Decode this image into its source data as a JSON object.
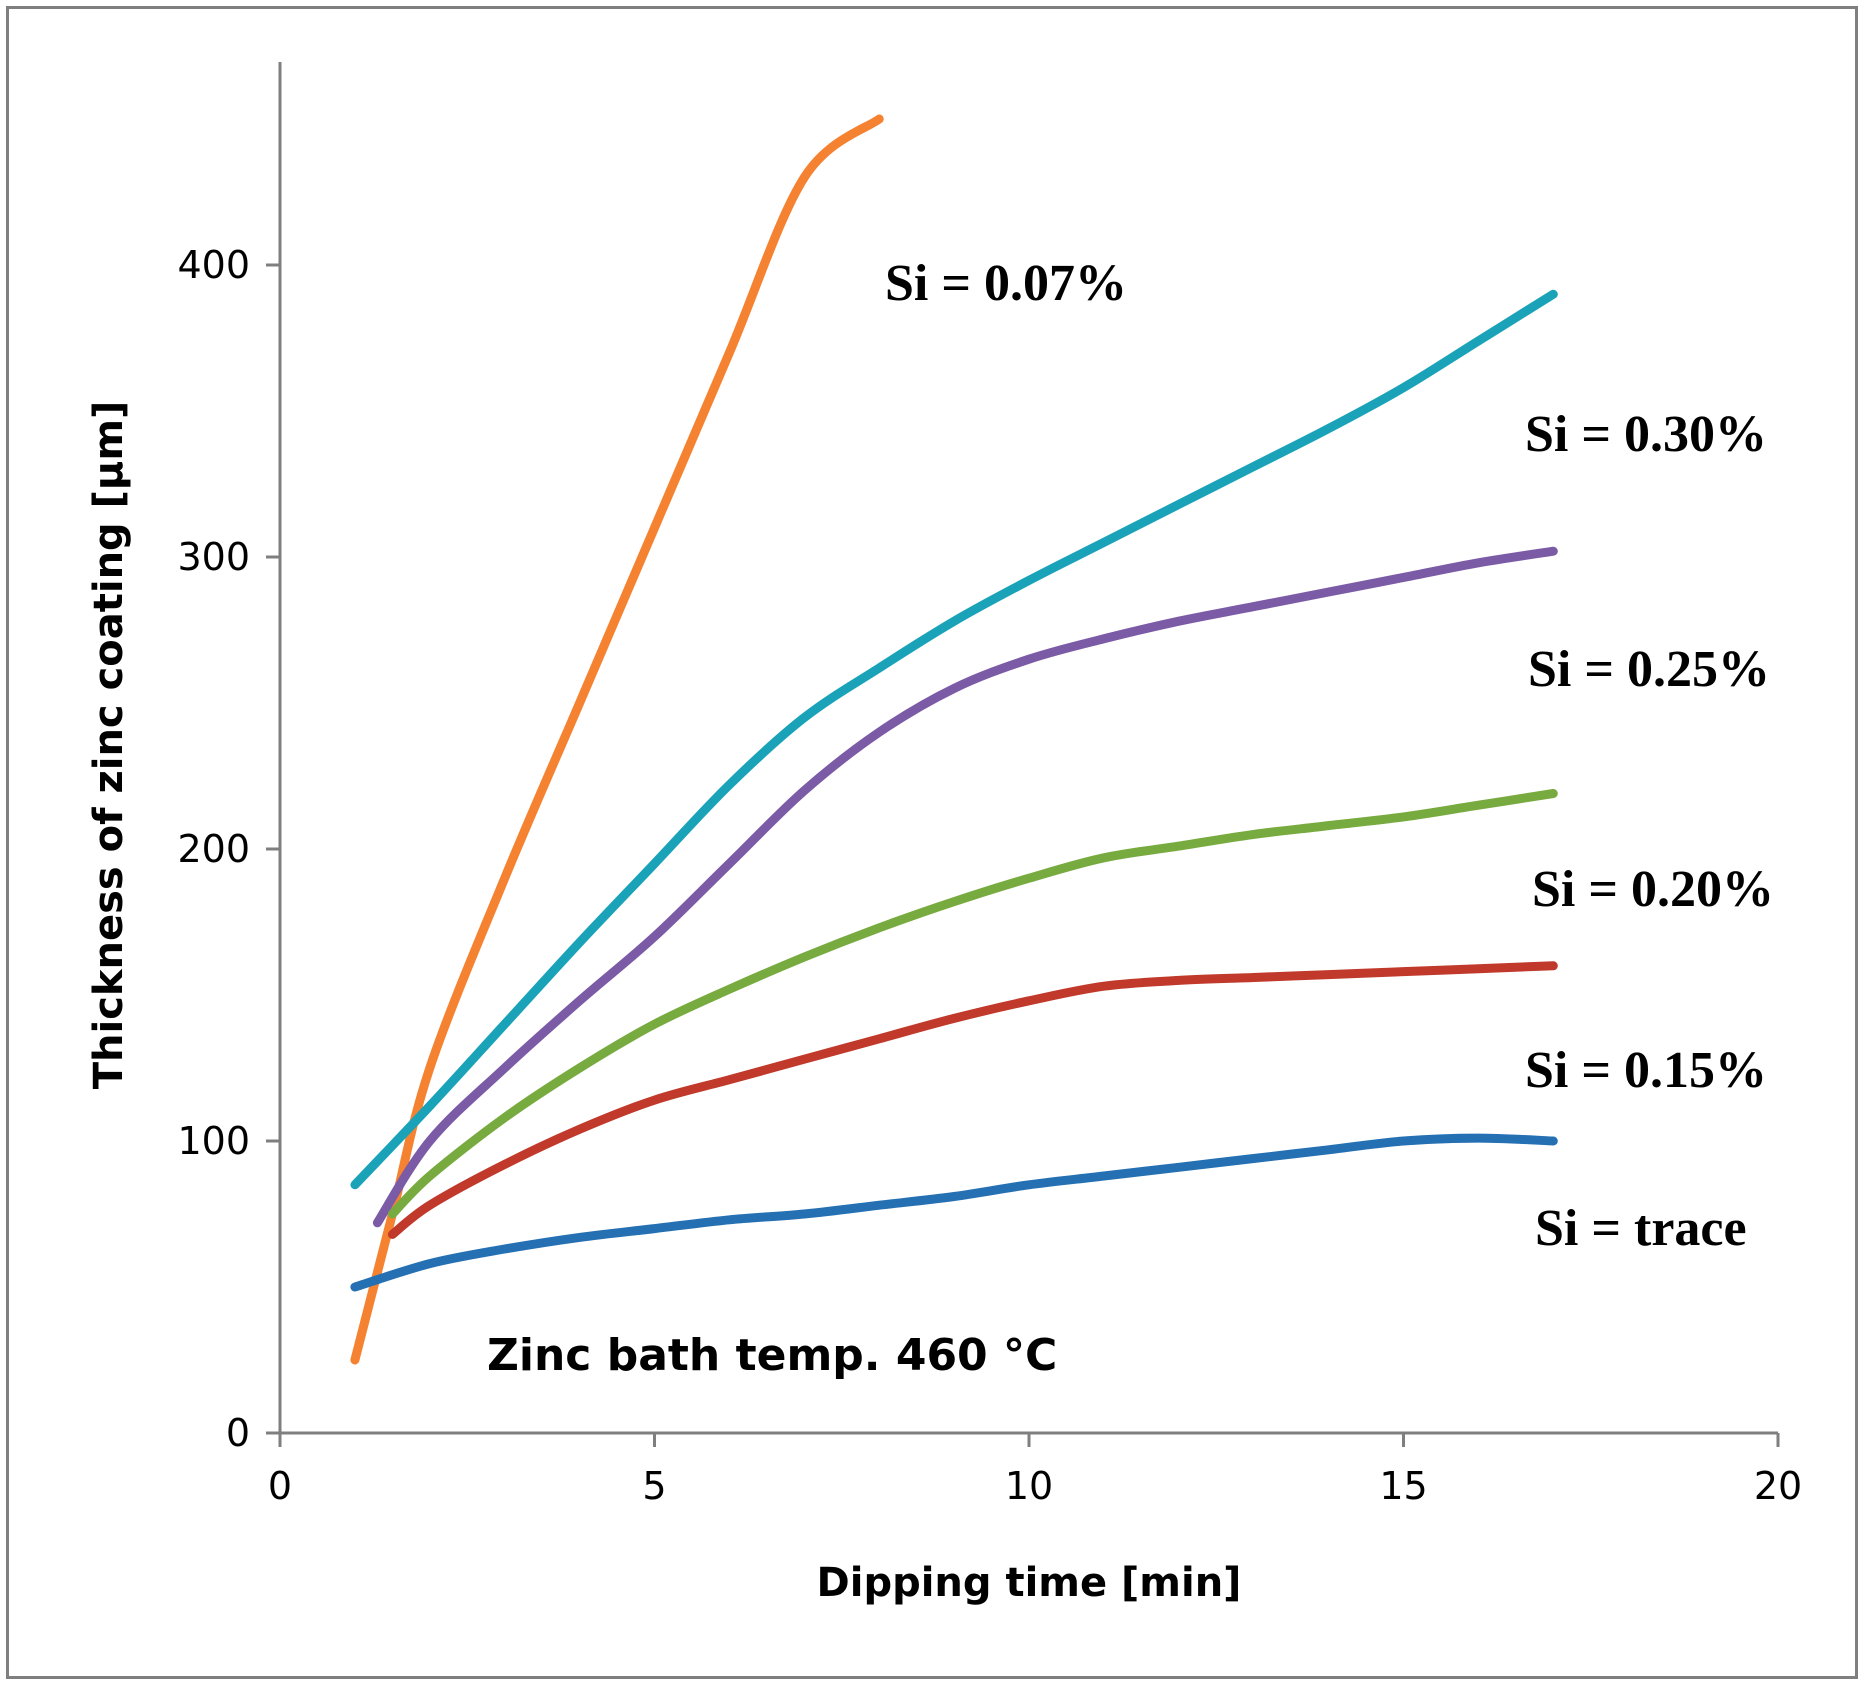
{
  "chart_data": {
    "type": "line",
    "title": "",
    "xlabel": "Dipping time [min]",
    "ylabel": "Thickness of zinc coating [µm]",
    "xlim": [
      0,
      20
    ],
    "ylim": [
      0,
      450
    ],
    "xticks": [
      0,
      5,
      10,
      15,
      20
    ],
    "yticks": [
      0,
      100,
      200,
      300,
      400
    ],
    "xtick_labels": [
      "0",
      "5",
      "10",
      "15",
      "20"
    ],
    "ytick_labels": [
      "0",
      "100",
      "200",
      "300",
      "400"
    ],
    "grid": false,
    "legend": "inline labels",
    "annotation": "Zinc bath temp. 460 °C",
    "series": [
      {
        "name": "Si = 0.07%",
        "color": "#f58231",
        "x": [
          1,
          1.5,
          2,
          3,
          4,
          5,
          6,
          7,
          8
        ],
        "y": [
          25,
          75,
          125,
          190,
          250,
          310,
          370,
          430,
          450
        ]
      },
      {
        "name": "Si = 0.30%",
        "color": "#1aa3b8",
        "x": [
          1,
          2,
          3,
          4,
          5,
          6,
          7,
          8,
          9,
          10,
          11,
          12,
          13,
          14,
          15,
          16,
          17
        ],
        "y": [
          85,
          112,
          140,
          168,
          195,
          222,
          245,
          262,
          278,
          292,
          305,
          318,
          331,
          344,
          358,
          374,
          390
        ]
      },
      {
        "name": "Si = 0.25%",
        "color": "#7b5aa6",
        "x": [
          1.3,
          2,
          3,
          4,
          5,
          6,
          7,
          8,
          9,
          10,
          11,
          12,
          13,
          14,
          15,
          16,
          17
        ],
        "y": [
          72,
          100,
          125,
          148,
          170,
          195,
          220,
          240,
          255,
          265,
          272,
          278,
          283,
          288,
          293,
          298,
          302
        ]
      },
      {
        "name": "Si = 0.20%",
        "color": "#78ab3f",
        "x": [
          1.5,
          2,
          3,
          4,
          5,
          6,
          7,
          8,
          9,
          10,
          11,
          12,
          13,
          14,
          15,
          16,
          17
        ],
        "y": [
          75,
          88,
          108,
          125,
          140,
          152,
          163,
          173,
          182,
          190,
          197,
          201,
          205,
          208,
          211,
          215,
          219
        ]
      },
      {
        "name": "Si = 0.15%",
        "color": "#c0392b",
        "x": [
          1.5,
          2,
          3,
          4,
          5,
          6,
          7,
          8,
          9,
          10,
          11,
          12,
          13,
          14,
          15,
          16,
          17
        ],
        "y": [
          68,
          78,
          92,
          104,
          114,
          121,
          128,
          135,
          142,
          148,
          153,
          155,
          156,
          157,
          158,
          159,
          160
        ]
      },
      {
        "name": "Si = trace",
        "color": "#2470b3",
        "x": [
          1,
          2,
          3,
          4,
          5,
          6,
          7,
          8,
          9,
          10,
          11,
          12,
          13,
          14,
          15,
          16,
          17
        ],
        "y": [
          50,
          58,
          63,
          67,
          70,
          73,
          75,
          78,
          81,
          85,
          88,
          91,
          94,
          97,
          100,
          101,
          100
        ]
      }
    ]
  }
}
